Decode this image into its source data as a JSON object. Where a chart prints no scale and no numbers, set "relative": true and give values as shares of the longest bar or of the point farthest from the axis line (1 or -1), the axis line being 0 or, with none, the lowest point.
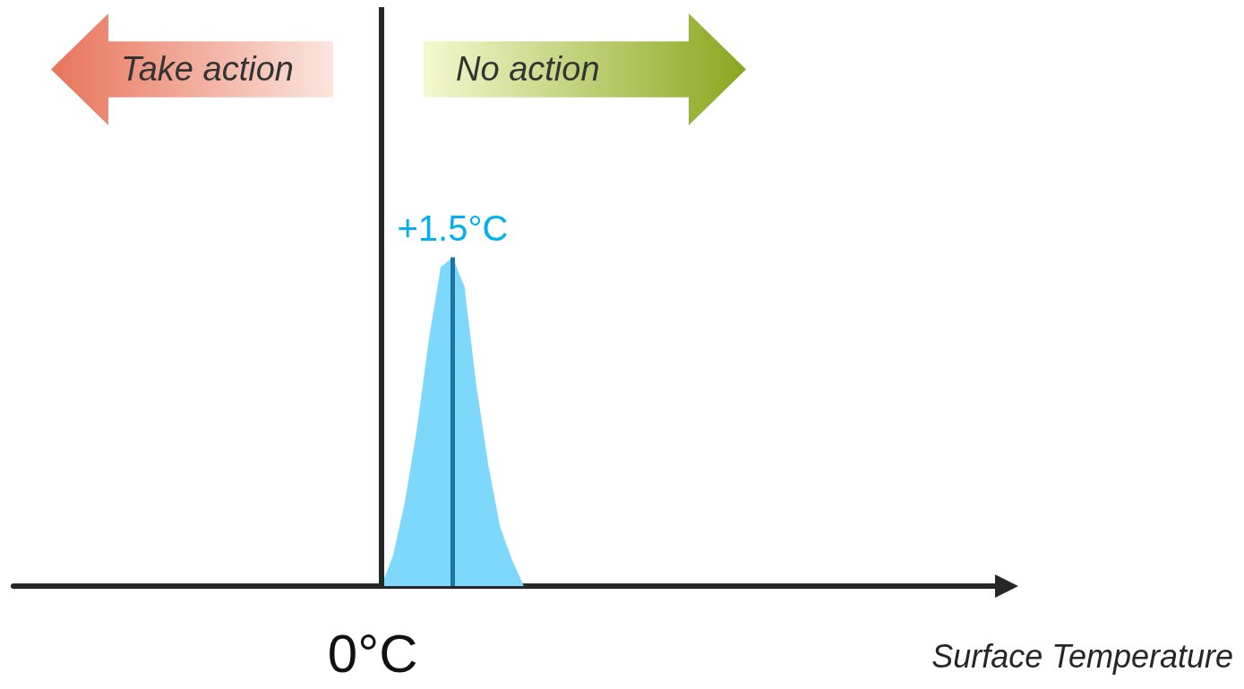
{
  "chart_data": {
    "type": "area",
    "relative": true,
    "xlabel": "Surface Temperature",
    "categories": [
      null,
      null,
      null,
      null,
      null,
      null,
      null,
      null,
      null,
      null,
      null,
      null,
      null,
      null,
      null,
      null,
      null,
      null,
      null,
      null,
      null,
      null,
      null,
      null,
      null,
      null,
      null,
      null,
      null,
      null,
      null,
      null,
      null,
      null,
      null,
      null,
      null,
      null,
      null,
      null,
      null,
      null,
      null,
      null,
      null,
      null,
      null,
      null,
      null,
      null,
      null,
      null,
      null,
      null,
      null,
      null,
      null,
      null,
      null,
      null,
      null,
      null,
      null,
      null,
      null,
      null,
      null,
      null,
      null,
      null,
      null,
      null,
      null,
      null,
      null,
      null,
      null,
      null,
      null,
      null,
      null,
      null,
      null,
      null
    ],
    "series": [
      {
        "color": "#7dd8fc",
        "values": [
          null,
          null,
          null,
          null,
          null,
          null,
          null,
          null,
          null,
          null,
          null,
          null,
          null,
          null,
          null,
          null,
          null,
          null,
          null,
          null,
          null,
          null,
          null,
          null,
          null,
          null,
          null,
          null,
          null,
          null,
          null,
          0,
          0.095,
          0.26,
          0.48,
          0.75,
          0.97,
          1,
          0.91,
          0.61,
          0.37,
          0.18,
          0.08,
          0,
          null,
          null,
          null,
          null,
          null,
          null,
          null,
          null,
          null,
          null,
          null,
          null,
          null,
          null,
          null,
          null,
          null,
          null,
          null,
          null,
          null,
          null,
          null,
          null,
          null,
          null,
          null,
          null,
          null,
          null,
          null,
          null,
          null,
          null,
          null,
          null,
          null,
          null,
          null,
          null
        ]
      }
    ],
    "annotations": [
      "Take action",
      "No action",
      "0°C",
      {
        "text": "+1.5°C",
        "y": 1
      }
    ],
    "marker": "none"
  }
}
